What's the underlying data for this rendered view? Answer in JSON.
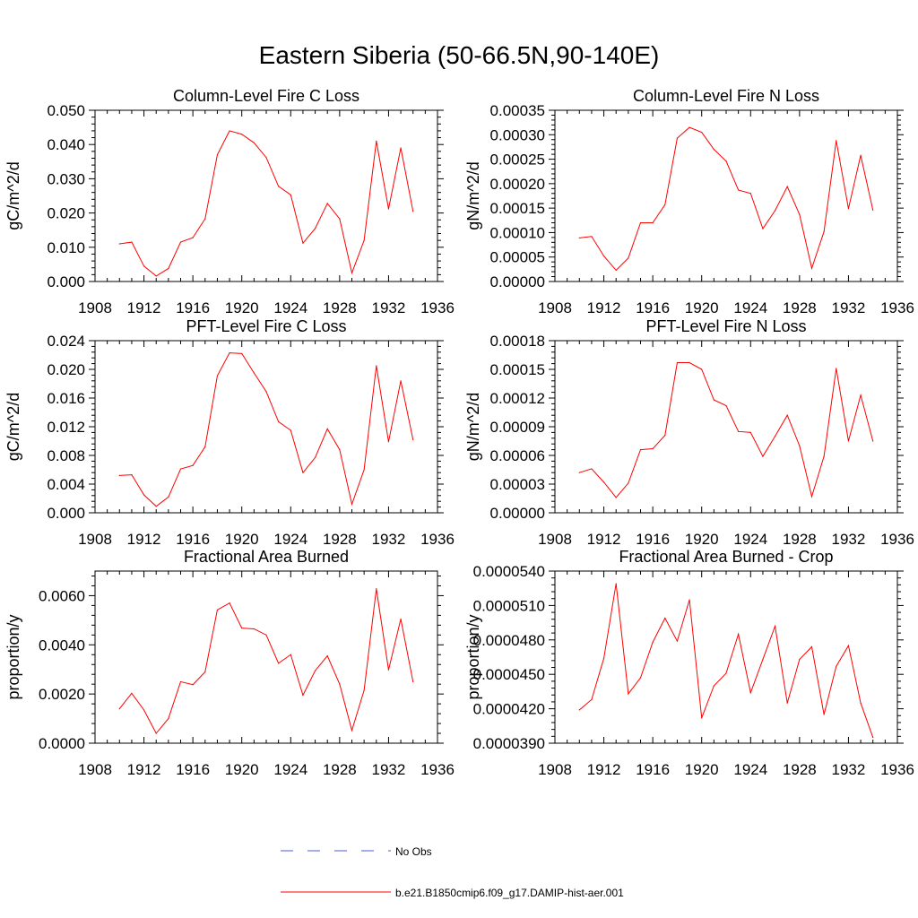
{
  "title": "Eastern Siberia (50-66.5N,90-140E)",
  "x_ticks": [
    "1908",
    "1912",
    "1916",
    "1920",
    "1924",
    "1928",
    "1932",
    "1936"
  ],
  "legend": {
    "obs_label": "No Obs",
    "model_label": "b.e21.B1850cmip6.f09_g17.DAMIP-hist-aer.001",
    "model_color": "#ff0000",
    "obs_color": "#4a5ccf"
  },
  "chart_data": [
    {
      "type": "line",
      "title": "Column-Level Fire C Loss",
      "ylabel": "gC/m^2/d",
      "xlim": [
        1908,
        1936
      ],
      "ylim": [
        0,
        0.05
      ],
      "yticks": [
        "0.000",
        "0.010",
        "0.020",
        "0.030",
        "0.040",
        "0.050"
      ],
      "x": [
        1910,
        1911,
        1912,
        1913,
        1914,
        1915,
        1916,
        1917,
        1918,
        1919,
        1920,
        1921,
        1922,
        1923,
        1924,
        1925,
        1926,
        1927,
        1928,
        1929,
        1930,
        1931,
        1932,
        1933,
        1934
      ],
      "series": [
        {
          "name": "b.e21.B1850cmip6.f09_g17.DAMIP-hist-aer.001",
          "values": [
            0.011,
            0.0115,
            0.0045,
            0.0016,
            0.0038,
            0.0115,
            0.0128,
            0.0183,
            0.037,
            0.044,
            0.043,
            0.0405,
            0.0362,
            0.0278,
            0.0253,
            0.0112,
            0.0155,
            0.0228,
            0.0183,
            0.0025,
            0.012,
            0.041,
            0.0212,
            0.039,
            0.0205
          ]
        }
      ]
    },
    {
      "type": "line",
      "title": "Column-Level Fire N Loss",
      "ylabel": "gN/m^2/d",
      "xlim": [
        1908,
        1936
      ],
      "ylim": [
        0,
        0.00035
      ],
      "yticks": [
        "0.00000",
        "0.00005",
        "0.00010",
        "0.00015",
        "0.00020",
        "0.00025",
        "0.00030",
        "0.00035"
      ],
      "x": [
        1910,
        1911,
        1912,
        1913,
        1914,
        1915,
        1916,
        1917,
        1918,
        1919,
        1920,
        1921,
        1922,
        1923,
        1924,
        1925,
        1926,
        1927,
        1928,
        1929,
        1930,
        1931,
        1932,
        1933,
        1934
      ],
      "series": [
        {
          "name": "b.e21.B1850cmip6.f09_g17.DAMIP-hist-aer.001",
          "values": [
            8.9e-05,
            9.2e-05,
            5.2e-05,
            2.3e-05,
            4.8e-05,
            0.00012,
            0.00012,
            0.000157,
            0.000293,
            0.000315,
            0.000305,
            0.00027,
            0.000246,
            0.000187,
            0.00018,
            0.000108,
            0.000145,
            0.000194,
            0.000137,
            2.7e-05,
            0.000102,
            0.000288,
            0.000149,
            0.000258,
            0.000146
          ]
        }
      ]
    },
    {
      "type": "line",
      "title": "PFT-Level Fire C Loss",
      "ylabel": "gC/m^2/d",
      "xlim": [
        1908,
        1936
      ],
      "ylim": [
        0,
        0.024
      ],
      "yticks": [
        "0.000",
        "0.004",
        "0.008",
        "0.012",
        "0.016",
        "0.020",
        "0.024"
      ],
      "x": [
        1910,
        1911,
        1912,
        1913,
        1914,
        1915,
        1916,
        1917,
        1918,
        1919,
        1920,
        1921,
        1922,
        1923,
        1924,
        1925,
        1926,
        1927,
        1928,
        1929,
        1930,
        1931,
        1932,
        1933,
        1934
      ],
      "series": [
        {
          "name": "b.e21.B1850cmip6.f09_g17.DAMIP-hist-aer.001",
          "values": [
            0.0052,
            0.0053,
            0.0025,
            0.0009,
            0.0022,
            0.0061,
            0.0066,
            0.0092,
            0.0191,
            0.0223,
            0.0222,
            0.0195,
            0.0169,
            0.0127,
            0.0115,
            0.0056,
            0.0077,
            0.0117,
            0.0088,
            0.0012,
            0.006,
            0.0205,
            0.0099,
            0.0184,
            0.0102
          ]
        }
      ]
    },
    {
      "type": "line",
      "title": "PFT-Level Fire N Loss",
      "ylabel": "gN/m^2/d",
      "xlim": [
        1908,
        1936
      ],
      "ylim": [
        0,
        0.00018
      ],
      "yticks": [
        "0.00000",
        "0.00003",
        "0.00006",
        "0.00009",
        "0.00012",
        "0.00015",
        "0.00018"
      ],
      "x": [
        1910,
        1911,
        1912,
        1913,
        1914,
        1915,
        1916,
        1917,
        1918,
        1919,
        1920,
        1921,
        1922,
        1923,
        1924,
        1925,
        1926,
        1927,
        1928,
        1929,
        1930,
        1931,
        1932,
        1933,
        1934
      ],
      "series": [
        {
          "name": "b.e21.B1850cmip6.f09_g17.DAMIP-hist-aer.001",
          "values": [
            4.2e-05,
            4.6e-05,
            3.2e-05,
            1.6e-05,
            3.1e-05,
            6.6e-05,
            6.7e-05,
            8.1e-05,
            0.000157,
            0.000157,
            0.00015,
            0.000118,
            0.000112,
            8.5e-05,
            8.4e-05,
            5.9e-05,
            8e-05,
            0.000102,
            7e-05,
            1.7e-05,
            5.9e-05,
            0.000151,
            7.5e-05,
            0.000123,
            7.5e-05
          ]
        }
      ]
    },
    {
      "type": "line",
      "title": "Fractional Area Burned",
      "ylabel": "proportion/y",
      "xlim": [
        1908,
        1936
      ],
      "ylim": [
        0,
        0.007
      ],
      "yticks": [
        "0.0000",
        "0.0020",
        "0.0040",
        "0.0060"
      ],
      "ytick_values": [
        0,
        0.002,
        0.004,
        0.006
      ],
      "x": [
        1910,
        1911,
        1912,
        1913,
        1914,
        1915,
        1916,
        1917,
        1918,
        1919,
        1920,
        1921,
        1922,
        1923,
        1924,
        1925,
        1926,
        1927,
        1928,
        1929,
        1930,
        1931,
        1932,
        1933,
        1934
      ],
      "series": [
        {
          "name": "b.e21.B1850cmip6.f09_g17.DAMIP-hist-aer.001",
          "values": [
            0.0014,
            0.00203,
            0.00135,
            0.0004,
            0.001,
            0.0025,
            0.00238,
            0.0029,
            0.00542,
            0.0057,
            0.00468,
            0.00465,
            0.0044,
            0.00325,
            0.0036,
            0.00195,
            0.00295,
            0.00355,
            0.0024,
            0.00052,
            0.00215,
            0.00628,
            0.00298,
            0.00505,
            0.0025
          ]
        }
      ]
    },
    {
      "type": "line",
      "title": "Fractional Area Burned - Crop",
      "ylabel": "proportion/y",
      "xlim": [
        1908,
        1936
      ],
      "ylim": [
        3.9e-05,
        5.4e-05
      ],
      "yticks": [
        "0.0000390",
        "0.0000420",
        "0.0000450",
        "0.0000480",
        "0.0000510",
        "0.0000540"
      ],
      "x": [
        1910,
        1911,
        1912,
        1913,
        1914,
        1915,
        1916,
        1917,
        1918,
        1919,
        1920,
        1921,
        1922,
        1923,
        1924,
        1925,
        1926,
        1927,
        1928,
        1929,
        1930,
        1931,
        1932,
        1933,
        1934
      ],
      "series": [
        {
          "name": "b.e21.B1850cmip6.f09_g17.DAMIP-hist-aer.001",
          "values": [
            4.19e-05,
            4.28e-05,
            4.64e-05,
            5.29e-05,
            4.33e-05,
            4.47e-05,
            4.78e-05,
            4.99e-05,
            4.79e-05,
            5.15e-05,
            4.12e-05,
            4.4e-05,
            4.51e-05,
            4.85e-05,
            4.34e-05,
            4.63e-05,
            4.92e-05,
            4.25e-05,
            4.63e-05,
            4.74e-05,
            4.15e-05,
            4.57e-05,
            4.75e-05,
            4.25e-05,
            3.95e-05
          ]
        }
      ]
    }
  ]
}
